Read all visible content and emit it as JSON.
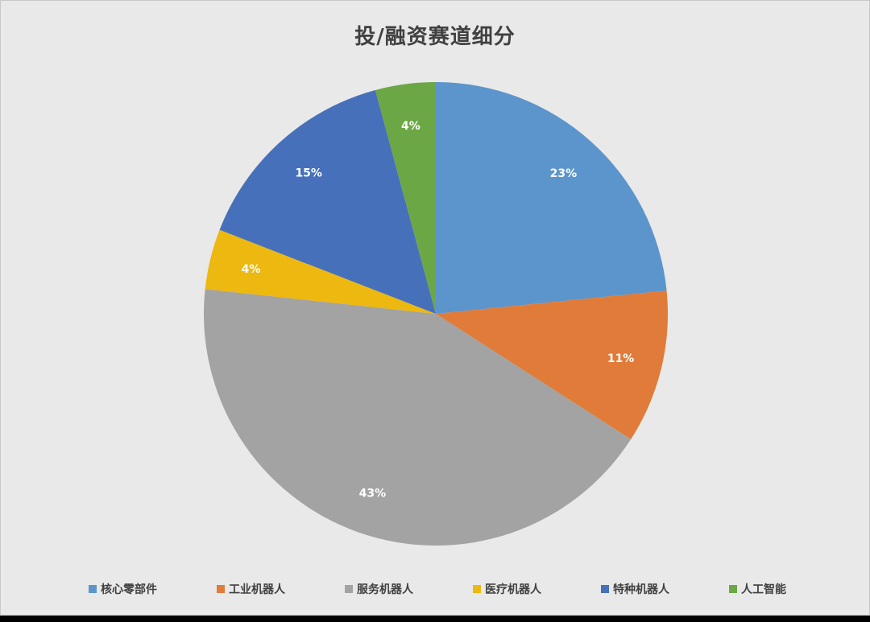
{
  "chart_data": {
    "type": "pie",
    "title": "投/融资赛道细分",
    "categories": [
      "核心零部件",
      "工业机器人",
      "服务机器人",
      "医疗机器人",
      "特种机器人",
      "人工智能"
    ],
    "values": [
      23,
      11,
      43,
      4,
      15,
      4
    ],
    "value_labels": [
      "23%",
      "11%",
      "43%",
      "4%",
      "15%",
      "4%"
    ],
    "colors": [
      "#5B95CB",
      "#E07B39",
      "#A3A3A3",
      "#EDB80F",
      "#4670BA",
      "#6CA745"
    ],
    "start_angle_deg": 0,
    "direction": "clockwise",
    "legend_position": "bottom",
    "grid": false
  },
  "legend": {
    "items": [
      {
        "label": "核心零部件",
        "color": "#5B95CB"
      },
      {
        "label": "工业机器人",
        "color": "#E07B39"
      },
      {
        "label": "服务机器人",
        "color": "#A3A3A3"
      },
      {
        "label": "医疗机器人",
        "color": "#EDB80F"
      },
      {
        "label": "特种机器人",
        "color": "#4670BA"
      },
      {
        "label": "人工智能",
        "color": "#6CA745"
      }
    ]
  }
}
